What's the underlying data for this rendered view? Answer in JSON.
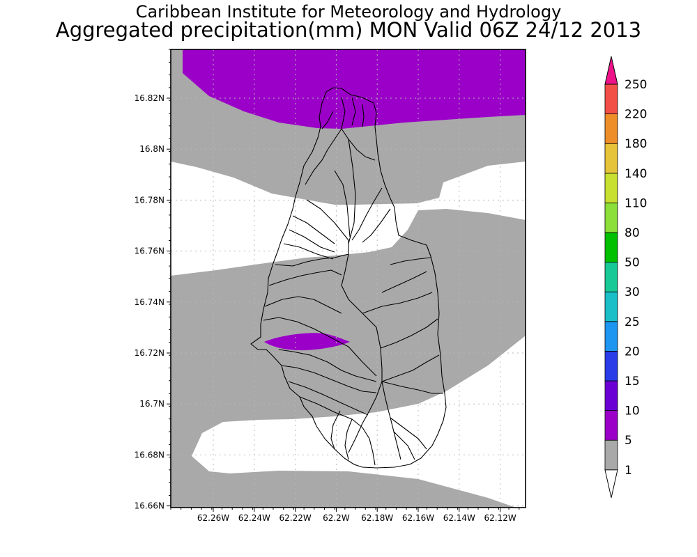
{
  "title": {
    "line1": "Caribbean Institute for Meteorology and Hydrology",
    "line2": "Aggregated precipitation(mm) MON Valid 06Z 24/12 2013"
  },
  "map": {
    "lat_ticks": [
      "16.82N",
      "16.8N",
      "16.78N",
      "16.76N",
      "16.74N",
      "16.72N",
      "16.7N",
      "16.68N",
      "16.66N"
    ],
    "lon_ticks": [
      "62.26W",
      "62.24W",
      "62.22W",
      "62.2W",
      "62.18W",
      "62.16W",
      "62.14W",
      "62.12W"
    ],
    "grid": true,
    "fill_colors": {
      "band_1_5": "#a9a9a9",
      "band_5_10": "#9b00c8",
      "below_1": "#ffffff"
    }
  },
  "colorbar": {
    "labels": [
      "1",
      "5",
      "10",
      "15",
      "20",
      "25",
      "30",
      "50",
      "80",
      "110",
      "140",
      "180",
      "220",
      "250"
    ],
    "colors": [
      "#a9a9a9",
      "#9b00c8",
      "#6a00d4",
      "#2a3be8",
      "#1c96f0",
      "#1abfc8",
      "#16c996",
      "#00c000",
      "#8cde38",
      "#c8e030",
      "#e6c43a",
      "#ee8e28",
      "#f25046",
      "#ee1288"
    ],
    "bottom_color": "#ffffff"
  }
}
